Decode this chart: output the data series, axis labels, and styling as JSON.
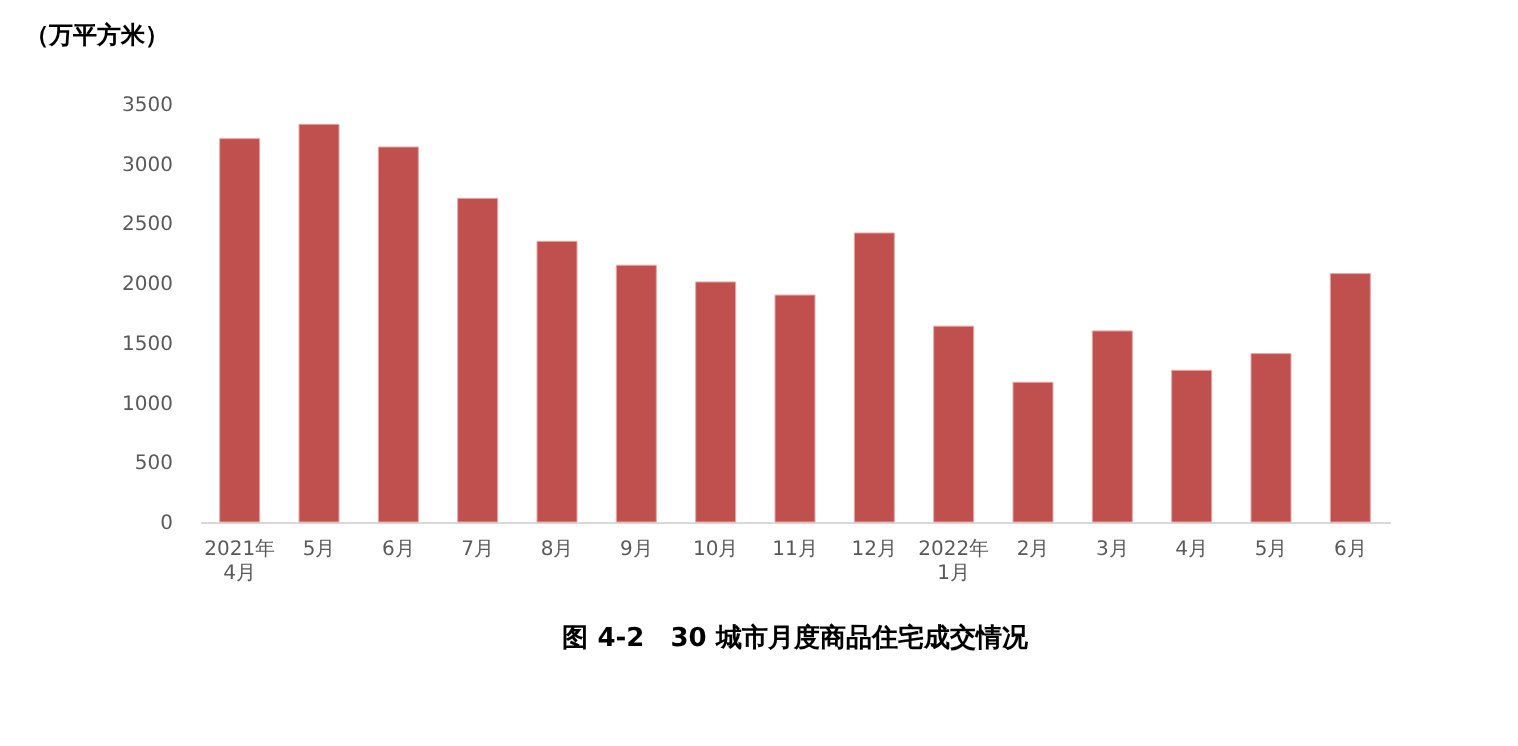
{
  "chart_data": {
    "type": "bar",
    "title": "图 4-2　30 城市月度商品住宅成交情况",
    "ylabel": "（万平方米）",
    "categories": [
      "2021年\n4月",
      "5月",
      "6月",
      "7月",
      "8月",
      "9月",
      "10月",
      "11月",
      "12月",
      "2022年\n1月",
      "2月",
      "3月",
      "4月",
      "5月",
      "6月"
    ],
    "values": [
      3210,
      3330,
      3140,
      2710,
      2350,
      2150,
      2010,
      1900,
      2420,
      1640,
      1170,
      1600,
      1270,
      1410,
      2080
    ],
    "color": "#c0504d",
    "ylim": [
      0,
      3500
    ],
    "yticks": [
      0,
      500,
      1000,
      1500,
      2000,
      2500,
      3000,
      3500
    ],
    "grid": false
  }
}
